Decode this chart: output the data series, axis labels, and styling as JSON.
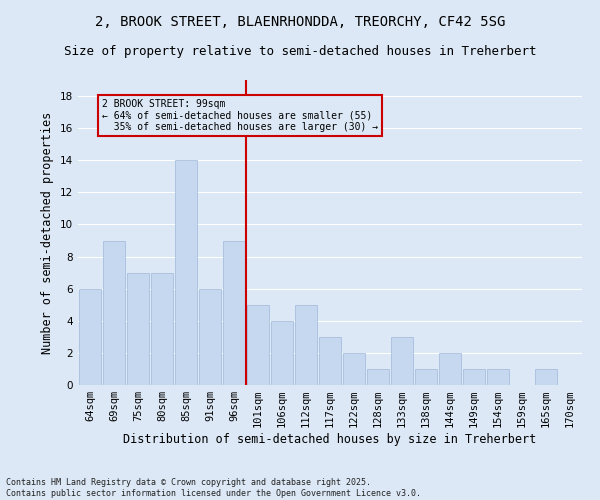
{
  "title_line1": "2, BROOK STREET, BLAENRHONDDA, TREORCHY, CF42 5SG",
  "title_line2": "Size of property relative to semi-detached houses in Treherbert",
  "xlabel": "Distribution of semi-detached houses by size in Treherbert",
  "ylabel": "Number of semi-detached properties",
  "categories": [
    "64sqm",
    "69sqm",
    "75sqm",
    "80sqm",
    "85sqm",
    "91sqm",
    "96sqm",
    "101sqm",
    "106sqm",
    "112sqm",
    "117sqm",
    "122sqm",
    "128sqm",
    "133sqm",
    "138sqm",
    "144sqm",
    "149sqm",
    "154sqm",
    "159sqm",
    "165sqm",
    "170sqm"
  ],
  "values": [
    6,
    9,
    7,
    7,
    14,
    6,
    9,
    5,
    4,
    5,
    3,
    2,
    1,
    3,
    1,
    2,
    1,
    1,
    0,
    1,
    0
  ],
  "bar_color": "#c5d8f0",
  "bar_edge_color": "#a0b8d8",
  "vline_x": 6.5,
  "vline_color": "#cc0000",
  "annotation_text": "2 BROOK STREET: 99sqm\n← 64% of semi-detached houses are smaller (55)\n  35% of semi-detached houses are larger (30) →",
  "annotation_box_color": "#cc0000",
  "ylim": [
    0,
    19
  ],
  "background_color": "#dce8f5",
  "footer_text": "Contains HM Land Registry data © Crown copyright and database right 2025.\nContains public sector information licensed under the Open Government Licence v3.0.",
  "grid_color": "#ffffff",
  "title_fontsize": 10,
  "subtitle_fontsize": 9,
  "axis_fontsize": 8.5,
  "tick_fontsize": 7.5
}
